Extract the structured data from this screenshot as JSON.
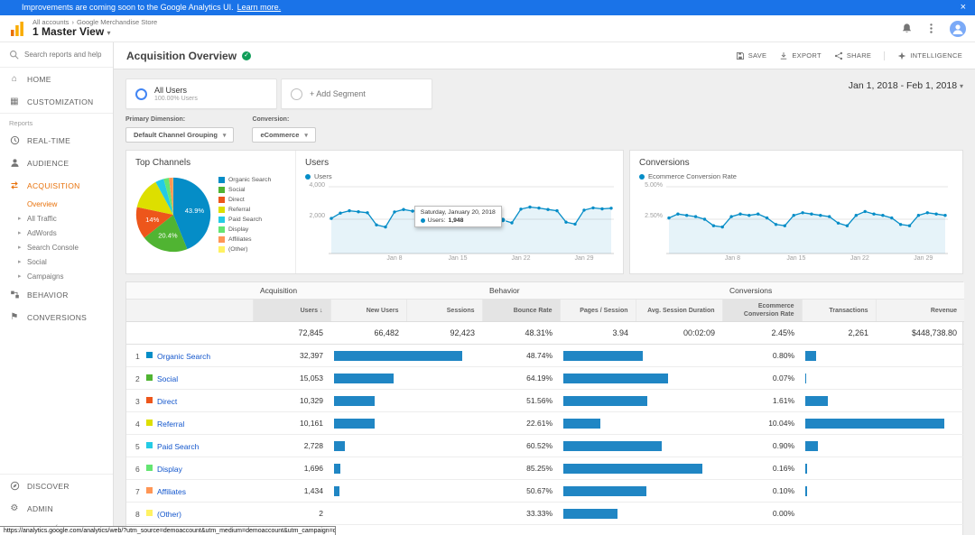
{
  "colors": {
    "banner_blue": "#1a73e8",
    "ga_orange": "#e8710a",
    "bar_blue": "#2086c4",
    "link_blue": "#1155cc",
    "chart_blue": "#058dc7",
    "check_green": "#0f9d58"
  },
  "banner": {
    "text": "Improvements are coming soon to the Google Analytics UI.",
    "link_label": "Learn more.",
    "close": "×"
  },
  "header": {
    "breadcrumb_accounts": "All accounts",
    "breadcrumb_property": "Google Merchandise Store",
    "view_title": "1 Master View"
  },
  "sidebar": {
    "search_placeholder": "Search reports and help",
    "home": "HOME",
    "customization": "CUSTOMIZATION",
    "reports_label": "Reports",
    "realtime": "REAL-TIME",
    "audience": "AUDIENCE",
    "acquisition": "ACQUISITION",
    "acq_children": [
      {
        "label": "Overview",
        "active": true,
        "arrow": false
      },
      {
        "label": "All Traffic",
        "active": false,
        "arrow": true
      },
      {
        "label": "AdWords",
        "active": false,
        "arrow": true
      },
      {
        "label": "Search Console",
        "active": false,
        "arrow": true
      },
      {
        "label": "Social",
        "active": false,
        "arrow": true
      },
      {
        "label": "Campaigns",
        "active": false,
        "arrow": true
      }
    ],
    "behavior": "BEHAVIOR",
    "conversions": "CONVERSIONS",
    "discover": "DISCOVER",
    "admin": "ADMIN"
  },
  "titlebar": {
    "title": "Acquisition Overview",
    "save": "SAVE",
    "export": "EXPORT",
    "share": "SHARE",
    "intelligence": "INTELLIGENCE"
  },
  "segments": {
    "all_users": "All Users",
    "all_users_detail": "100.00% Users",
    "add_segment": "+ Add Segment",
    "date_range": "Jan 1, 2018 - Feb 1, 2018"
  },
  "controls": {
    "primary_dimension_label": "Primary Dimension:",
    "primary_dimension_value": "Default Channel Grouping",
    "conversion_label": "Conversion:",
    "conversion_value": "eCommerce"
  },
  "chart_data": [
    {
      "type": "pie",
      "title": "Top Channels",
      "legend_position": "right",
      "labels": [
        "Organic Search",
        "Social",
        "Direct",
        "Referral",
        "Paid Search",
        "Display",
        "Affiliates",
        "(Other)"
      ],
      "values": [
        43.9,
        20.4,
        14.0,
        13.8,
        3.7,
        2.3,
        1.8,
        0.1
      ],
      "slice_labels": [
        "43.9%",
        "20.4%",
        "14%",
        null,
        null,
        null,
        null,
        null
      ],
      "colors": [
        "#058dc7",
        "#50b432",
        "#ed561b",
        "#dddf00",
        "#24cbe5",
        "#64e572",
        "#ff9655",
        "#fff263"
      ]
    },
    {
      "type": "line",
      "title": "Users",
      "series": [
        {
          "name": "Users",
          "color": "#058dc7",
          "values": [
            2050,
            2380,
            2520,
            2460,
            2400,
            1650,
            1520,
            2450,
            2600,
            2500,
            2560,
            2480,
            1700,
            1620,
            2520,
            2700,
            2630,
            2560,
            2600,
            1948,
            1780,
            2620,
            2750,
            2690,
            2600,
            2520,
            1820,
            1700,
            2560,
            2700,
            2640,
            2680
          ]
        }
      ],
      "x_range": [
        "Jan 1, 2018",
        "Feb 1, 2018"
      ],
      "xticks": [
        "Jan 8",
        "Jan 15",
        "Jan 22",
        "Jan 29"
      ],
      "xtick_indices": [
        7,
        14,
        21,
        28
      ],
      "yticks": [
        "4,000",
        "2,000"
      ],
      "ylim": [
        0,
        4000
      ],
      "grid": true,
      "tooltip": {
        "title": "Saturday, January 20, 2018",
        "series": "Users:",
        "value": "1,948",
        "index": 19
      }
    },
    {
      "type": "line",
      "title": "Conversions",
      "series": [
        {
          "name": "Ecommerce Conversion Rate",
          "color": "#058dc7",
          "values": [
            2.6,
            2.9,
            2.8,
            2.7,
            2.5,
            2.0,
            1.9,
            2.7,
            2.9,
            2.8,
            2.9,
            2.6,
            2.1,
            2.0,
            2.8,
            3.0,
            2.9,
            2.8,
            2.7,
            2.2,
            2.0,
            2.8,
            3.1,
            2.9,
            2.8,
            2.6,
            2.1,
            2.0,
            2.8,
            3.0,
            2.9,
            2.8
          ]
        }
      ],
      "xticks": [
        "Jan 8",
        "Jan 15",
        "Jan 22",
        "Jan 29"
      ],
      "xtick_indices": [
        7,
        14,
        21,
        28
      ],
      "yticks": [
        "5.00%",
        "2.50%"
      ],
      "ylim": [
        0,
        5
      ],
      "grid": true
    }
  ],
  "table": {
    "groups": [
      "Acquisition",
      "Behavior",
      "Conversions"
    ],
    "columns": [
      "Users",
      "New Users",
      "Sessions",
      "Bounce Rate",
      "Pages / Session",
      "Avg. Session Duration",
      "Ecommerce Conversion Rate",
      "Transactions",
      "Revenue"
    ],
    "sort_column": "Users",
    "totals": [
      "72,845",
      "66,482",
      "92,423",
      "48.31%",
      "3.94",
      "00:02:09",
      "2.45%",
      "2,261",
      "$448,738.80"
    ],
    "rows": [
      {
        "rank": "1",
        "channel": "Organic Search",
        "users": "32,397",
        "bounce_rate": "48.74%",
        "ecommerce_conversion_rate": "0.80%"
      },
      {
        "rank": "2",
        "channel": "Social",
        "users": "15,053",
        "bounce_rate": "64.19%",
        "ecommerce_conversion_rate": "0.07%"
      },
      {
        "rank": "3",
        "channel": "Direct",
        "users": "10,329",
        "bounce_rate": "51.56%",
        "ecommerce_conversion_rate": "1.61%"
      },
      {
        "rank": "4",
        "channel": "Referral",
        "users": "10,161",
        "bounce_rate": "22.61%",
        "ecommerce_conversion_rate": "10.04%"
      },
      {
        "rank": "5",
        "channel": "Paid Search",
        "users": "2,728",
        "bounce_rate": "60.52%",
        "ecommerce_conversion_rate": "0.90%"
      },
      {
        "rank": "6",
        "channel": "Display",
        "users": "1,696",
        "bounce_rate": "85.25%",
        "ecommerce_conversion_rate": "0.16%"
      },
      {
        "rank": "7",
        "channel": "Affiliates",
        "users": "1,434",
        "bounce_rate": "50.67%",
        "ecommerce_conversion_rate": "0.10%"
      },
      {
        "rank": "8",
        "channel": "(Other)",
        "users": "2",
        "bounce_rate": "33.33%",
        "ecommerce_conversion_rate": "0.00%"
      }
    ],
    "footer_text": "To see all 8 Channels click",
    "footer_link": "here",
    "footer_period": "."
  },
  "statusbar": {
    "url": "https://analytics.google.com/analytics/web/?utm_source=demoaccount&utm_medium=demoaccount&utm_campaign=demoaccount#/report/tra"
  }
}
